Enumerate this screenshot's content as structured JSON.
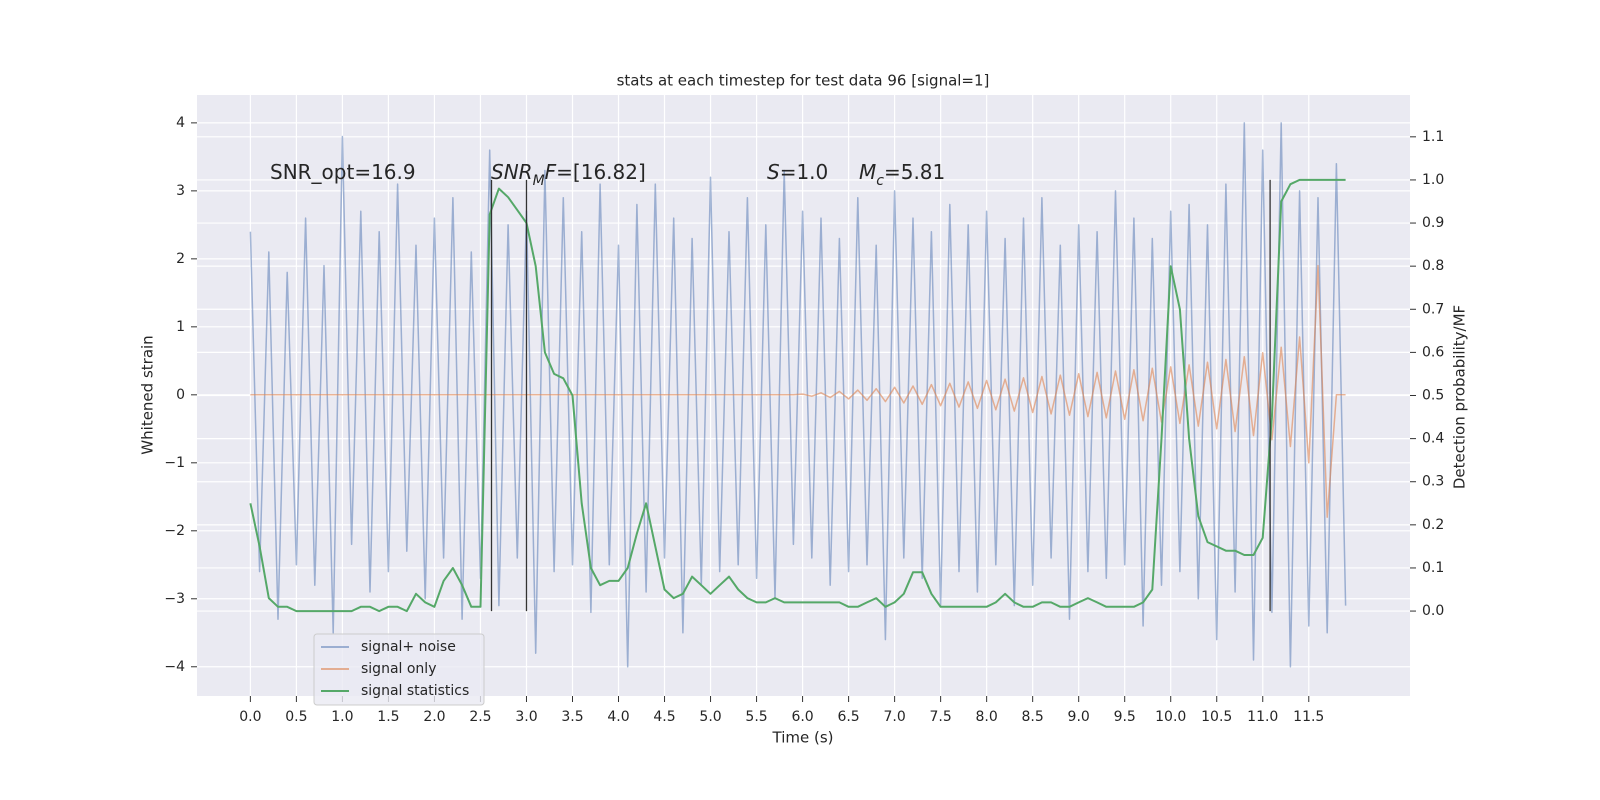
{
  "chart_data": {
    "type": "line",
    "title": "stats at each timestep for test data 96 [signal=1]",
    "xlabel": "Time (s)",
    "ylabel": "Whitened strain",
    "y2label": "Detection probability/MF",
    "x": [
      0,
      0.1,
      0.2,
      0.3,
      0.4,
      0.5,
      0.6,
      0.7,
      0.8,
      0.9,
      1,
      1.1,
      1.2,
      1.3,
      1.4,
      1.5,
      1.6,
      1.7,
      1.8,
      1.9,
      2,
      2.1,
      2.2,
      2.3,
      2.4,
      2.5,
      2.6,
      2.7,
      2.8,
      2.9,
      3,
      3.1,
      3.2,
      3.3,
      3.4,
      3.5,
      3.6,
      3.7,
      3.8,
      3.9,
      4,
      4.1,
      4.2,
      4.3,
      4.4,
      4.5,
      4.6,
      4.7,
      4.8,
      4.9,
      5,
      5.1,
      5.2,
      5.3,
      5.4,
      5.5,
      5.6,
      5.7,
      5.8,
      5.9,
      6,
      6.1,
      6.2,
      6.3,
      6.4,
      6.5,
      6.6,
      6.7,
      6.8,
      6.9,
      7,
      7.1,
      7.2,
      7.3,
      7.4,
      7.5,
      7.6,
      7.7,
      7.8,
      7.9,
      8,
      8.1,
      8.2,
      8.3,
      8.4,
      8.5,
      8.6,
      8.7,
      8.8,
      8.9,
      9,
      9.1,
      9.2,
      9.3,
      9.4,
      9.5,
      9.6,
      9.7,
      9.8,
      9.9,
      10,
      10.1,
      10.2,
      10.3,
      10.4,
      10.5,
      10.6,
      10.7,
      10.8,
      10.9,
      11,
      11.1,
      11.2,
      11.3,
      11.4,
      11.5,
      11.6,
      11.7,
      11.8,
      11.9
    ],
    "series": [
      {
        "name": "signal+ noise",
        "color": "#4c72b0",
        "opacity": 0.5,
        "values": [
          2.4,
          -2.6,
          2.1,
          -3.3,
          1.8,
          -2.5,
          2.6,
          -2.8,
          1.9,
          -3.5,
          3.8,
          -2.2,
          2.7,
          -2.9,
          2.4,
          -2.6,
          3.1,
          -2.3,
          2.2,
          -3.0,
          2.6,
          -2.4,
          2.9,
          -3.3,
          2.1,
          -2.7,
          3.6,
          -3.1,
          2.5,
          -2.4,
          2.7,
          -3.8,
          3.3,
          -2.6,
          2.9,
          -2.5,
          2.4,
          -3.2,
          3.1,
          -2.5,
          2.2,
          -4.0,
          2.8,
          -2.9,
          3.1,
          -2.4,
          2.6,
          -3.5,
          2.3,
          -2.8,
          3.2,
          -2.6,
          2.4,
          -2.5,
          2.9,
          -2.7,
          2.5,
          -3.0,
          3.3,
          -2.2,
          2.7,
          -2.4,
          2.6,
          -2.8,
          2.3,
          -2.6,
          2.9,
          -2.5,
          2.2,
          -3.6,
          3.0,
          -2.4,
          2.6,
          -2.7,
          2.4,
          -3.1,
          2.8,
          -2.6,
          2.5,
          -2.9,
          2.7,
          -2.5,
          2.3,
          -3.1,
          2.6,
          -2.8,
          2.9,
          -2.4,
          2.2,
          -3.3,
          2.5,
          -2.6,
          2.4,
          -2.7,
          3.0,
          -2.5,
          2.6,
          -3.4,
          2.3,
          -2.8,
          2.7,
          -2.6,
          2.8,
          -3.0,
          2.5,
          -3.6,
          3.1,
          -2.9,
          4.0,
          -3.9,
          3.6,
          -3.2,
          4.0,
          -4.0,
          3.0,
          -3.4,
          2.9,
          -3.5,
          3.4,
          -3.1
        ]
      },
      {
        "name": "signal only",
        "color": "#dd8452",
        "opacity": 0.6,
        "values": [
          0,
          0,
          0,
          0,
          0,
          0,
          0,
          0,
          0,
          0,
          0,
          0,
          0,
          0,
          0,
          0,
          0,
          0,
          0,
          0,
          0,
          0,
          0,
          0,
          0,
          0,
          0,
          0,
          0,
          0,
          0,
          0,
          0,
          0,
          0,
          0,
          0,
          0,
          0,
          0,
          0,
          0,
          0,
          0,
          0,
          0,
          0,
          0,
          0,
          0,
          0,
          0,
          0,
          0,
          0,
          0,
          0,
          0,
          0,
          0,
          0.01,
          -0.02,
          0.03,
          -0.04,
          0.05,
          -0.06,
          0.07,
          -0.08,
          0.09,
          -0.1,
          0.11,
          -0.12,
          0.13,
          -0.14,
          0.15,
          -0.16,
          0.17,
          -0.18,
          0.19,
          -0.2,
          0.21,
          -0.22,
          0.23,
          -0.24,
          0.25,
          -0.26,
          0.27,
          -0.28,
          0.29,
          -0.3,
          0.31,
          -0.32,
          0.33,
          -0.34,
          0.35,
          -0.36,
          0.37,
          -0.38,
          0.39,
          -0.4,
          0.41,
          -0.42,
          0.44,
          -0.46,
          0.48,
          -0.5,
          0.52,
          -0.54,
          0.56,
          -0.6,
          0.62,
          -0.66,
          0.7,
          -0.76,
          0.85,
          -1.0,
          1.9,
          -1.8,
          0,
          0
        ]
      },
      {
        "name": "signal statistics",
        "color": "#55a868",
        "opacity": 1,
        "axis": "y2",
        "values": [
          0.25,
          0.15,
          0.03,
          0.01,
          0.01,
          0.0,
          0.0,
          0.0,
          0.0,
          0.0,
          0.0,
          0.0,
          0.01,
          0.01,
          0.0,
          0.01,
          0.01,
          0.0,
          0.04,
          0.02,
          0.01,
          0.07,
          0.1,
          0.06,
          0.01,
          0.01,
          0.92,
          0.98,
          0.96,
          0.93,
          0.9,
          0.8,
          0.6,
          0.55,
          0.54,
          0.5,
          0.25,
          0.1,
          0.06,
          0.07,
          0.07,
          0.1,
          0.18,
          0.25,
          0.15,
          0.05,
          0.03,
          0.04,
          0.08,
          0.06,
          0.04,
          0.06,
          0.08,
          0.05,
          0.03,
          0.02,
          0.02,
          0.03,
          0.02,
          0.02,
          0.02,
          0.02,
          0.02,
          0.02,
          0.02,
          0.01,
          0.01,
          0.02,
          0.03,
          0.01,
          0.02,
          0.04,
          0.09,
          0.09,
          0.04,
          0.01,
          0.01,
          0.01,
          0.01,
          0.01,
          0.01,
          0.02,
          0.04,
          0.02,
          0.01,
          0.01,
          0.02,
          0.02,
          0.01,
          0.01,
          0.02,
          0.03,
          0.02,
          0.01,
          0.01,
          0.01,
          0.01,
          0.02,
          0.05,
          0.4,
          0.8,
          0.7,
          0.4,
          0.22,
          0.16,
          0.15,
          0.14,
          0.14,
          0.13,
          0.13,
          0.17,
          0.45,
          0.95,
          0.99,
          1.0,
          1.0,
          1.0,
          1.0,
          1.0,
          1.0
        ]
      }
    ],
    "vlines": {
      "x": [
        2.62,
        3.0,
        11.08
      ],
      "span": [
        0,
        1
      ],
      "color": "#333333"
    },
    "annotations": [
      {
        "parts": [
          {
            "text": "SNR_opt=16.9"
          }
        ]
      },
      {
        "parts": [
          {
            "text": "SNR",
            "style": "italic"
          },
          {
            "text": "M",
            "style": "sub"
          },
          {
            "text": "F",
            "style": "italic"
          },
          {
            "text": "=[16.82]"
          }
        ]
      },
      {
        "parts": [
          {
            "text": "S",
            "style": "italic"
          },
          {
            "text": "=1.0"
          }
        ]
      },
      {
        "parts": [
          {
            "text": "M",
            "style": "italic"
          },
          {
            "text": "c",
            "style": "sub"
          },
          {
            "text": "=5.81"
          }
        ]
      }
    ],
    "xlim": [
      -0.58,
      12.6
    ],
    "xticks": [
      {
        "value": 0,
        "label": "0.0"
      },
      0.5,
      {
        "value": 1,
        "label": "1.0"
      },
      1.5,
      {
        "value": 2,
        "label": "2.0"
      },
      2.5,
      {
        "value": 3,
        "label": "3.0"
      },
      3.5,
      {
        "value": 4,
        "label": "4.0"
      },
      4.5,
      {
        "value": 5,
        "label": "5.0"
      },
      5.5,
      {
        "value": 6,
        "label": "6.0"
      },
      6.5,
      {
        "value": 7,
        "label": "7.0"
      },
      7.5,
      {
        "value": 8,
        "label": "8.0"
      },
      8.5,
      {
        "value": 9,
        "label": "9.0"
      },
      9.5,
      {
        "value": 10,
        "label": "10.0"
      },
      10.5,
      {
        "value": 11,
        "label": "11.0"
      },
      11.5
    ],
    "ylim": [
      -4.43,
      4.41
    ],
    "yticks": [
      {
        "value": -4,
        "label": "−4"
      },
      {
        "value": -3,
        "label": "−3"
      },
      {
        "value": -2,
        "label": "−2"
      },
      {
        "value": -1,
        "label": "−1"
      },
      0,
      1,
      2,
      3,
      4
    ],
    "y2lim": [
      -0.197,
      1.197
    ],
    "y2ticks": [
      {
        "value": 0,
        "label": "0.0"
      },
      0.1,
      0.2,
      0.3,
      0.4,
      0.5,
      0.6,
      0.7,
      0.8,
      0.9,
      {
        "value": 1,
        "label": "1.0"
      },
      1.1
    ],
    "grid": true,
    "legend": "lower left"
  }
}
